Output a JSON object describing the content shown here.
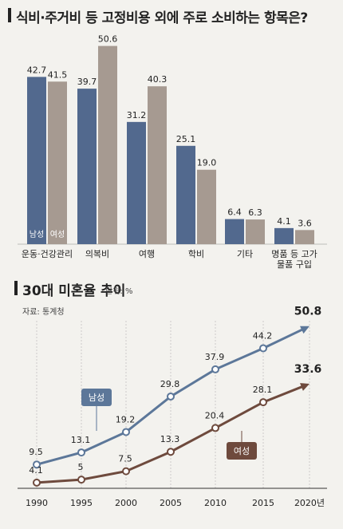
{
  "bar_title": "식비·주거비 등 고정비용 외에 주로 소비하는 항목은?",
  "line_title": "30대 미혼율 추이",
  "line_unit": "단위: %",
  "line_source": "자료: 통계청",
  "colors": {
    "male": "#52698e",
    "female": "#a69a91",
    "male_line": "#5c7799",
    "female_line": "#6e4a3d"
  },
  "chart_data": [
    {
      "type": "bar",
      "title": "식비·주거비 등 고정비용 외에 주로 소비하는 항목은?",
      "categories": [
        "운동·건강관리",
        "의복비",
        "여행",
        "학비",
        "기타",
        "명품 등 고가\n물품 구입"
      ],
      "series": [
        {
          "name": "남성",
          "values": [
            42.7,
            39.7,
            31.2,
            25.1,
            6.4,
            4.1
          ]
        },
        {
          "name": "여성",
          "values": [
            41.5,
            50.6,
            40.3,
            19.0,
            6.3,
            3.6
          ]
        }
      ],
      "value_labels": {
        "남성": [
          "42.7",
          "39.7",
          "31.2",
          "25.1",
          "6.4",
          "4.1"
        ],
        "여성": [
          "41.5",
          "50.6",
          "40.3",
          "19.0",
          "6.3",
          "3.6"
        ]
      },
      "ylim": [
        0,
        55
      ]
    },
    {
      "type": "line",
      "title": "30대 미혼율 추이",
      "x": [
        "1990",
        "1995",
        "2000",
        "2005",
        "2010",
        "2015",
        "2020년"
      ],
      "series": [
        {
          "name": "남성",
          "values": [
            9.5,
            13.1,
            19.2,
            29.8,
            37.9,
            44.2,
            50.8
          ]
        },
        {
          "name": "여성",
          "values": [
            4.1,
            5,
            7.5,
            13.3,
            20.4,
            28.1,
            33.6
          ]
        }
      ],
      "value_labels": {
        "남성": [
          "9.5",
          "13.1",
          "19.2",
          "29.8",
          "37.9",
          "44.2",
          "50.8"
        ],
        "여성": [
          "4.1",
          "5",
          "7.5",
          "13.3",
          "20.4",
          "28.1",
          "33.6"
        ]
      },
      "ylim": [
        0,
        55
      ]
    }
  ]
}
